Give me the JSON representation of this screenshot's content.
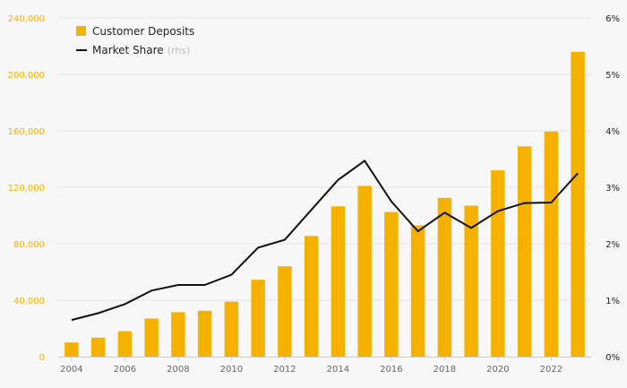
{
  "chart_data": {
    "type": "bar",
    "title": "",
    "xlabel": "",
    "ylabel": "",
    "years": [
      2004,
      2005,
      2006,
      2007,
      2008,
      2009,
      2010,
      2011,
      2012,
      2013,
      2014,
      2015,
      2016,
      2017,
      2018,
      2019,
      2020,
      2021,
      2022,
      2023
    ],
    "x_tick_labels": [
      "2004",
      "2006",
      "2008",
      "2010",
      "2012",
      "2014",
      "2016",
      "2018",
      "2020",
      "2022"
    ],
    "y_left": {
      "ylim": [
        0,
        240000
      ],
      "ticks": [
        "0",
        "40,000",
        "80,000",
        "120,000",
        "160,000",
        "200,000",
        "240,000"
      ]
    },
    "y_right": {
      "ylim": [
        0,
        6
      ],
      "ticks": [
        "0%",
        "1%",
        "2%",
        "3%",
        "4%",
        "5%",
        "6%"
      ]
    },
    "grid": true,
    "legend_position": "top-left",
    "series": [
      {
        "name": "Customer Deposits",
        "type": "bar",
        "axis": "left",
        "values": [
          10000,
          13500,
          18000,
          27000,
          31500,
          32500,
          39000,
          54500,
          64000,
          85500,
          106500,
          121000,
          102500,
          93000,
          112500,
          107000,
          132000,
          149000,
          159500,
          216000
        ]
      },
      {
        "name": "Market Share",
        "legend_suffix": "(rhs)",
        "type": "line",
        "axis": "right",
        "values": [
          0.65,
          0.77,
          0.93,
          1.17,
          1.27,
          1.27,
          1.45,
          1.93,
          2.07,
          2.6,
          3.13,
          3.47,
          2.75,
          2.22,
          2.55,
          2.28,
          2.58,
          2.72,
          2.73,
          3.25
        ]
      }
    ],
    "colors": {
      "bar": "#f5b100",
      "line": "#111111",
      "left_axis_text": "#f5b100",
      "right_axis_text": "#222222"
    }
  }
}
